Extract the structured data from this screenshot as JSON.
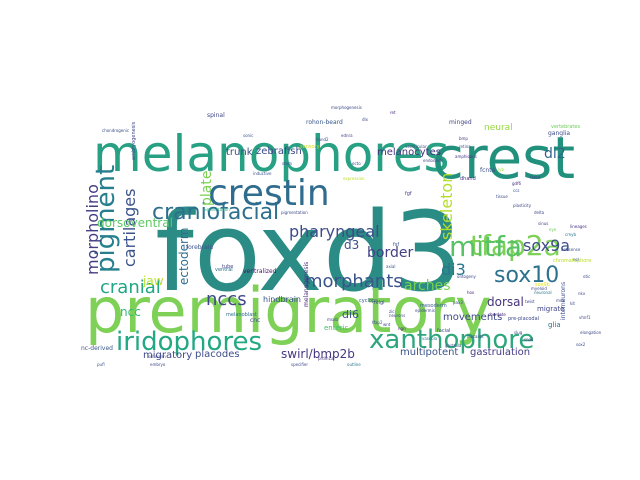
{
  "words": [
    {
      "text": "foxd3",
      "color": "#2a8c84",
      "vertical": false
    },
    {
      "text": "premigratory",
      "color": "#7ed056",
      "vertical": false
    },
    {
      "text": "melanophores",
      "color": "#27a083",
      "vertical": false
    },
    {
      "text": "crest",
      "color": "#21917d",
      "vertical": false
    },
    {
      "text": "crestin",
      "color": "#2f6c8e",
      "vertical": false
    },
    {
      "text": "tfap2a",
      "color": "#7ed056",
      "vertical": false
    },
    {
      "text": "xanthophore",
      "color": "#2ea67c",
      "vertical": false
    },
    {
      "text": "iridophores",
      "color": "#23a884",
      "vertical": false
    },
    {
      "text": "mitfa",
      "color": "#58c266",
      "vertical": false
    },
    {
      "text": "pigment",
      "color": "#277f8e",
      "vertical": true
    },
    {
      "text": "craniofacial",
      "color": "#2e6f8e",
      "vertical": false
    },
    {
      "text": "sox10",
      "color": "#2c718e",
      "vertical": false
    },
    {
      "text": "morphants",
      "color": "#3a548c",
      "vertical": false
    },
    {
      "text": "cranial",
      "color": "#21a685",
      "vertical": false
    },
    {
      "text": "morpholino",
      "color": "#433d84",
      "vertical": true
    },
    {
      "text": "cartilages",
      "color": "#3b538b",
      "vertical": true
    },
    {
      "text": "pharyngeal",
      "color": "#3e4c8a",
      "vertical": false
    },
    {
      "text": "nccs",
      "color": "#3f4889",
      "vertical": false
    },
    {
      "text": "sox9a",
      "color": "#3d4e8a",
      "vertical": false
    },
    {
      "text": "di3",
      "color": "#2a768e",
      "vertical": false
    },
    {
      "text": "di2",
      "color": "#33638d",
      "vertical": false
    },
    {
      "text": "d3",
      "color": "#3b528b",
      "vertical": false
    },
    {
      "text": "arches",
      "color": "#7ad151",
      "vertical": false
    },
    {
      "text": "border",
      "color": "#424086",
      "vertical": false
    },
    {
      "text": "skeleton",
      "color": "#b5de2b",
      "vertical": true
    },
    {
      "text": "swirl/bmp2b",
      "color": "#453781",
      "vertical": false
    },
    {
      "text": "dorsoventral",
      "color": "#5ec962",
      "vertical": false
    },
    {
      "text": "melanocytes",
      "color": "#46307e",
      "vertical": false
    },
    {
      "text": "zebrafish",
      "color": "#3e4a89",
      "vertical": false
    },
    {
      "text": "trunk",
      "color": "#3c4f8a",
      "vertical": false
    },
    {
      "text": "plate",
      "color": "#7ad151",
      "vertical": true
    },
    {
      "text": "ectoderm",
      "color": "#2e6e8e",
      "vertical": true
    },
    {
      "text": "ncc",
      "color": "#38b977",
      "vertical": false
    },
    {
      "text": "jaw",
      "color": "#b8de29",
      "vertical": false
    },
    {
      "text": "di6",
      "color": "#3b528b",
      "vertical": false
    },
    {
      "text": "dorsal",
      "color": "#46337e",
      "vertical": false
    },
    {
      "text": "movements",
      "color": "#3e4989",
      "vertical": false
    },
    {
      "text": "placodes",
      "color": "#3d4e8a",
      "vertical": false
    },
    {
      "text": "migratory",
      "color": "#3f4889",
      "vertical": false
    },
    {
      "text": "multipotent",
      "color": "#3b528b",
      "vertical": false
    },
    {
      "text": "gastrulation",
      "color": "#443a83",
      "vertical": false
    },
    {
      "text": "hindbrain",
      "color": "#3b528b",
      "vertical": false
    },
    {
      "text": "enteric",
      "color": "#44bf70",
      "vertical": false
    },
    {
      "text": "neural",
      "color": "#95d840",
      "vertical": false
    },
    {
      "text": "spinal",
      "color": "#3f4788",
      "vertical": false
    },
    {
      "text": "rohon-beard",
      "color": "#38588c",
      "vertical": false
    },
    {
      "text": "minged",
      "color": "#404588",
      "vertical": false
    },
    {
      "text": "forebrain",
      "color": "#3b528b",
      "vertical": false
    },
    {
      "text": "ventralized",
      "color": "#471365",
      "vertical": false
    },
    {
      "text": "tube",
      "color": "#424086",
      "vertical": false
    },
    {
      "text": "ganglia",
      "color": "#3e4a89",
      "vertical": false
    },
    {
      "text": "glia",
      "color": "#2c728e",
      "vertical": false
    },
    {
      "text": "migrate",
      "color": "#414487",
      "vertical": false
    },
    {
      "text": "melanogenesis",
      "color": "#4a2c7e",
      "vertical": true
    },
    {
      "text": "sensory",
      "color": "#d0e11c",
      "vertical": false
    },
    {
      "text": "mesoderm",
      "color": "#35608d",
      "vertical": false
    },
    {
      "text": "embryogenesis",
      "color": "#3f4889",
      "vertical": true
    },
    {
      "text": "melanoblast",
      "color": "#2d708e",
      "vertical": false
    },
    {
      "text": "nc-derived",
      "color": "#3a548c",
      "vertical": false
    },
    {
      "text": "fcnta",
      "color": "#3b528b",
      "vertical": false
    },
    {
      "text": "dhand",
      "color": "#46307e",
      "vertical": false
    },
    {
      "text": "fgf",
      "color": "#433e85",
      "vertical": false
    },
    {
      "text": "vertebrates",
      "color": "#6ccd5a",
      "vertical": false
    },
    {
      "text": "chondrogenic",
      "color": "#3c508b",
      "vertical": false
    },
    {
      "text": "schwann",
      "color": "#3e4a89",
      "vertical": false
    },
    {
      "text": "ventral",
      "color": "#2d708e",
      "vertical": false
    },
    {
      "text": "interneurons",
      "color": "#3b528b",
      "vertical": true
    },
    {
      "text": "specifier",
      "color": "#3e4989",
      "vertical": false
    },
    {
      "text": "outline",
      "color": "#2a778e",
      "vertical": false
    },
    {
      "text": "cyclops",
      "color": "#375a8c",
      "vertical": false
    },
    {
      "text": "lineages",
      "color": "#46307e",
      "vertical": false
    },
    {
      "text": "lyb",
      "color": "#9fda3a",
      "vertical": false
    },
    {
      "text": "nilgi",
      "color": "#3e4989",
      "vertical": false
    },
    {
      "text": "fsf",
      "color": "#3b528b",
      "vertical": false
    },
    {
      "text": "chromatophore",
      "color": "#b8de29",
      "vertical": false
    },
    {
      "text": "sox9b",
      "color": "#e2e418",
      "vertical": false
    },
    {
      "text": "ncl",
      "color": "#3b528b",
      "vertical": false
    },
    {
      "text": "eye",
      "color": "#6ece58",
      "vertical": false
    },
    {
      "text": "gdf6",
      "color": "#46307e",
      "vertical": false
    },
    {
      "text": "tissue",
      "color": "#3e4a89",
      "vertical": false
    },
    {
      "text": "cnc",
      "color": "#3f4889",
      "vertical": false
    },
    {
      "text": "facial",
      "color": "#3c4f8a",
      "vertical": false
    },
    {
      "text": "vascula",
      "color": "#2a788e",
      "vertical": false
    },
    {
      "text": "ontogeny",
      "color": "#3e4989",
      "vertical": false
    },
    {
      "text": "pre-placodal",
      "color": "#3e4989",
      "vertical": false
    },
    {
      "text": "pigmentation",
      "color": "#22a884",
      "vertical": false
    },
    {
      "text": "inductive",
      "color": "#3b528b",
      "vertical": false
    },
    {
      "text": "fated",
      "color": "#433e85",
      "vertical": false
    },
    {
      "text": "myeloid",
      "color": "#3e4989",
      "vertical": false
    },
    {
      "text": "expression",
      "color": "#b5de2b",
      "vertical": false
    },
    {
      "text": "chordate",
      "color": "#482878",
      "vertical": false
    },
    {
      "text": "mutants",
      "color": "#3e4989",
      "vertical": false
    },
    {
      "text": "ngn",
      "color": "#482878",
      "vertical": false
    },
    {
      "text": "ecto",
      "color": "#3e4989",
      "vertical": false
    },
    {
      "text": "otic",
      "color": "#3b528b",
      "vertical": false
    },
    {
      "text": "cmyb",
      "color": "#2a788e",
      "vertical": false
    },
    {
      "text": "bmp",
      "color": "#414487",
      "vertical": false
    },
    {
      "text": "delta",
      "color": "#3e4989",
      "vertical": false
    },
    {
      "text": "retina",
      "color": "#3b528b",
      "vertical": false
    },
    {
      "text": "amphioxus",
      "color": "#46307e",
      "vertical": false
    },
    {
      "text": "sinus",
      "color": "#414487",
      "vertical": false
    },
    {
      "text": "gastrula",
      "color": "#3e4989",
      "vertical": false
    },
    {
      "text": "pigmentation",
      "color": "#3e4989",
      "vertical": false
    },
    {
      "text": "antisense",
      "color": "#3b528b",
      "vertical": false
    },
    {
      "text": "neuronal",
      "color": "#2a788e",
      "vertical": false
    },
    {
      "text": "twist",
      "color": "#3e4989",
      "vertical": false
    },
    {
      "text": "hox",
      "color": "#482878",
      "vertical": false
    },
    {
      "text": "slug",
      "color": "#3e4989",
      "vertical": false
    },
    {
      "text": "snail",
      "color": "#414487",
      "vertical": false
    },
    {
      "text": "pax3",
      "color": "#3e4989",
      "vertical": false
    },
    {
      "text": "axial",
      "color": "#3b528b",
      "vertical": false
    },
    {
      "text": "embryo",
      "color": "#3e4989",
      "vertical": false
    },
    {
      "text": "prdm1a",
      "color": "#46307e",
      "vertical": false
    },
    {
      "text": "wnt",
      "color": "#3e4989",
      "vertical": false
    },
    {
      "text": "neurons",
      "color": "#3e4989",
      "vertical": false
    },
    {
      "text": "tfap2",
      "color": "#3b528b",
      "vertical": false
    },
    {
      "text": "msxb",
      "color": "#414487",
      "vertical": false
    },
    {
      "text": "zic",
      "color": "#3e4989",
      "vertical": false
    },
    {
      "text": "epidermis",
      "color": "#3e4989",
      "vertical": false
    },
    {
      "text": "mdk",
      "color": "#3e4989",
      "vertical": false
    },
    {
      "text": "pufl",
      "color": "#3b528b",
      "vertical": false
    },
    {
      "text": "morphogenesis",
      "color": "#3e4989",
      "vertical": false
    },
    {
      "text": "ret",
      "color": "#482878",
      "vertical": false
    },
    {
      "text": "dlx",
      "color": "#3e4989",
      "vertical": false
    },
    {
      "text": "ednra",
      "color": "#414487",
      "vertical": false
    },
    {
      "text": "hand2",
      "color": "#3e4989",
      "vertical": false
    },
    {
      "text": "sonic",
      "color": "#3b528b",
      "vertical": false
    },
    {
      "text": "stem",
      "color": "#3e4989",
      "vertical": false
    },
    {
      "text": "ventricular",
      "color": "#3e4989",
      "vertical": false
    },
    {
      "text": "endoderm",
      "color": "#3e4989",
      "vertical": false
    },
    {
      "text": "ccs",
      "color": "#3b528b",
      "vertical": false
    },
    {
      "text": "plasticity",
      "color": "#3e4989",
      "vertical": false
    },
    {
      "text": "nkx",
      "color": "#3e4989",
      "vertical": false
    },
    {
      "text": "kit",
      "color": "#3e4989",
      "vertical": false
    },
    {
      "text": "vhnf1",
      "color": "#414487",
      "vertical": false
    },
    {
      "text": "elongation",
      "color": "#3e4989",
      "vertical": false
    },
    {
      "text": "sox2",
      "color": "#3e4989",
      "vertical": false
    }
  ]
}
